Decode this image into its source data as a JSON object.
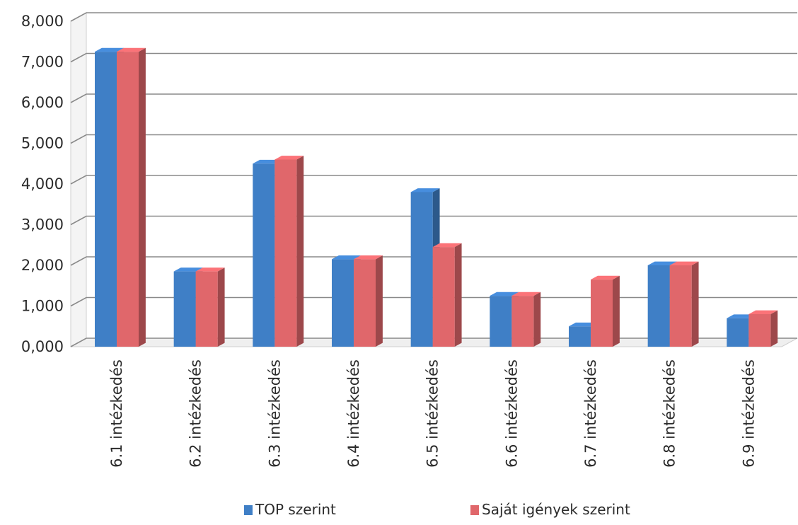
{
  "chart_data": {
    "type": "bar",
    "categories": [
      "6.1 intézkedés",
      "6.2 intézkedés",
      "6.3 intézkedés",
      "6.4 intézkedés",
      "6.5 intézkedés",
      "6.6 intézkedés",
      "6.7 intézkedés",
      "6.8 intézkedés",
      "6.9 intézkedés"
    ],
    "series": [
      {
        "name": "TOP szerint",
        "values": [
          7.25,
          1.85,
          4.5,
          2.15,
          3.8,
          1.25,
          0.5,
          2.0,
          0.7
        ],
        "color": "#3f7fc6"
      },
      {
        "name": "Saját igények szerint",
        "values": [
          7.25,
          1.85,
          4.6,
          2.15,
          2.45,
          1.25,
          1.65,
          2.0,
          0.8
        ],
        "color": "#e0676b"
      }
    ],
    "ylim": [
      0,
      8
    ],
    "y_ticks": [
      "0,000",
      "1,000",
      "2,000",
      "3,000",
      "4,000",
      "5,000",
      "6,000",
      "7,000",
      "8,000"
    ],
    "grid": true,
    "legend": "bottom",
    "style": "3d-clustered-column"
  }
}
